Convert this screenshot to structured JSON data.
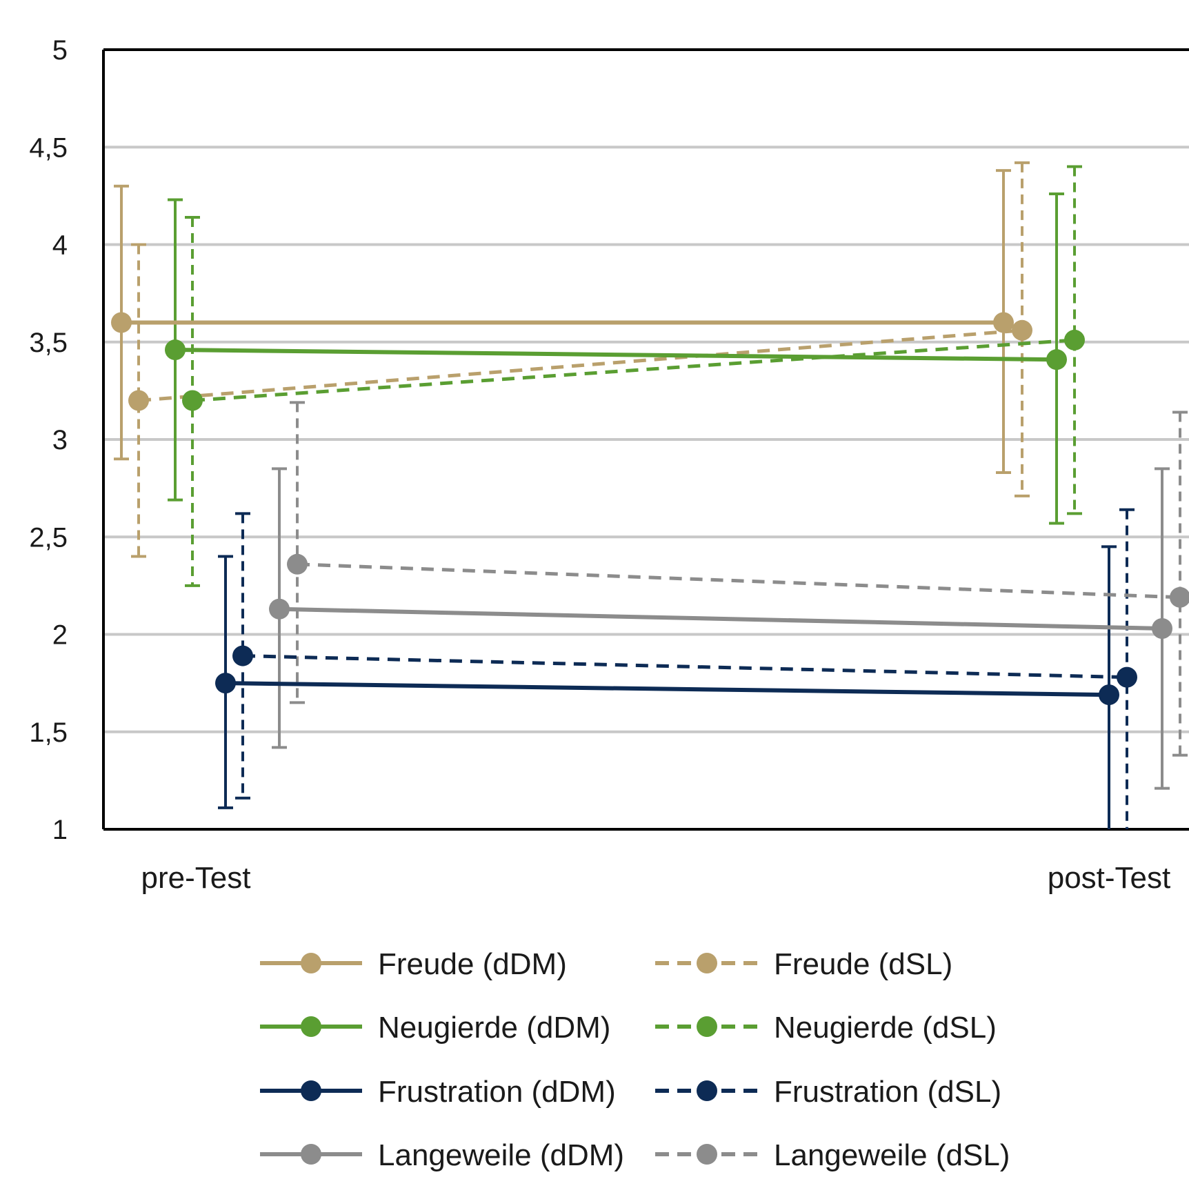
{
  "chart_data": {
    "type": "line",
    "title": "",
    "xlabel": "",
    "ylabel": "",
    "categories": [
      "pre-Test",
      "post-Test"
    ],
    "ylim": [
      1,
      5
    ],
    "yticks": [
      1,
      1.5,
      2,
      2.5,
      3,
      3.5,
      4,
      4.5,
      5
    ],
    "ytick_labels": [
      "1",
      "1,5",
      "2",
      "2,5",
      "3",
      "3,5",
      "4",
      "4,5",
      "5"
    ],
    "grid": true,
    "legend_position": "bottom",
    "error_bars": true,
    "series": [
      {
        "name": "Freude (dDM)",
        "color": "#b9a06c",
        "dashed": false,
        "values": [
          3.6,
          3.6
        ],
        "err_low": [
          2.9,
          2.83
        ],
        "err_high": [
          4.3,
          4.38
        ]
      },
      {
        "name": "Freude (dSL)",
        "color": "#b9a06c",
        "dashed": true,
        "values": [
          3.2,
          3.56
        ],
        "err_low": [
          2.4,
          2.71
        ],
        "err_high": [
          4.0,
          4.42
        ]
      },
      {
        "name": "Neugierde (dDM)",
        "color": "#5a9e32",
        "dashed": false,
        "values": [
          3.46,
          3.41
        ],
        "err_low": [
          2.69,
          2.57
        ],
        "err_high": [
          4.23,
          4.26
        ]
      },
      {
        "name": "Neugierde (dSL)",
        "color": "#5a9e32",
        "dashed": true,
        "values": [
          3.2,
          3.51
        ],
        "err_low": [
          2.25,
          2.62
        ],
        "err_high": [
          4.14,
          4.4
        ]
      },
      {
        "name": "Frustration (dDM)",
        "color": "#0d2b55",
        "dashed": false,
        "values": [
          1.75,
          1.69
        ],
        "err_low": [
          1.11,
          0.93
        ],
        "err_high": [
          2.4,
          2.45
        ]
      },
      {
        "name": "Frustration (dSL)",
        "color": "#0d2b55",
        "dashed": true,
        "values": [
          1.89,
          1.78
        ],
        "err_low": [
          1.16,
          0.92
        ],
        "err_high": [
          2.62,
          2.64
        ]
      },
      {
        "name": "Langeweile (dDM)",
        "color": "#8c8c8c",
        "dashed": false,
        "values": [
          2.13,
          2.03
        ],
        "err_low": [
          1.42,
          1.21
        ],
        "err_high": [
          2.85,
          2.85
        ]
      },
      {
        "name": "Langeweile (dSL)",
        "color": "#8c8c8c",
        "dashed": true,
        "values": [
          2.36,
          2.19
        ],
        "err_low": [
          1.65,
          1.38
        ],
        "err_high": [
          3.19,
          3.14
        ]
      }
    ]
  }
}
